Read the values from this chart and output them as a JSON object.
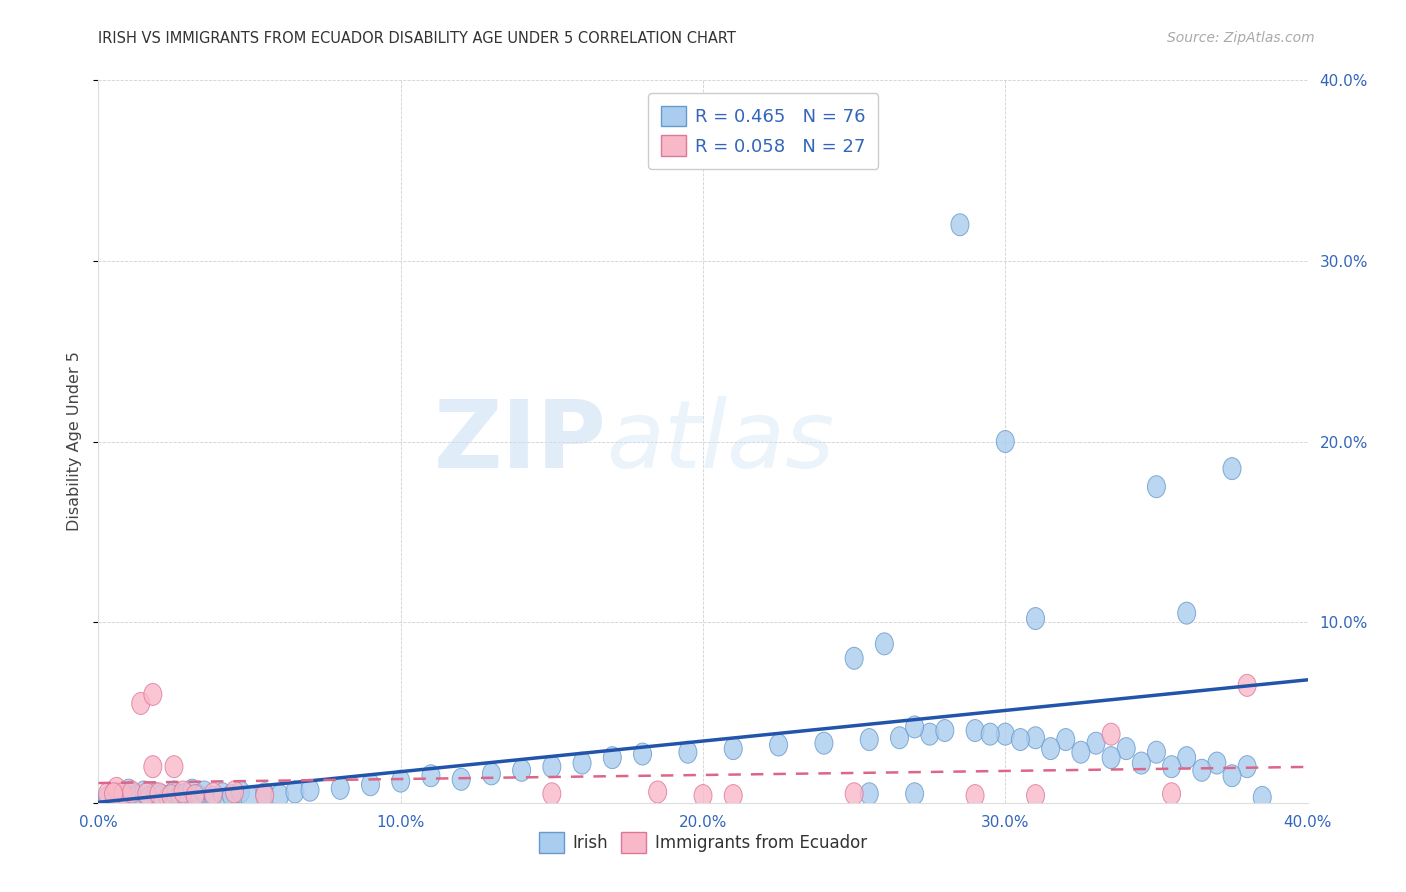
{
  "title": "IRISH VS IMMIGRANTS FROM ECUADOR DISABILITY AGE UNDER 5 CORRELATION CHART",
  "source": "Source: ZipAtlas.com",
  "ylabel": "Disability Age Under 5",
  "xlim": [
    0.0,
    0.4
  ],
  "ylim": [
    0.0,
    0.4
  ],
  "xticks": [
    0.0,
    0.1,
    0.2,
    0.3,
    0.4
  ],
  "yticks": [
    0.0,
    0.1,
    0.2,
    0.3,
    0.4
  ],
  "xticklabels": [
    "0.0%",
    "10.0%",
    "20.0%",
    "30.0%",
    "40.0%"
  ],
  "yticklabels": [
    "",
    "10.0%",
    "20.0%",
    "30.0%",
    "40.0%"
  ],
  "irish_fill": "#aaccee",
  "irish_edge": "#6699cc",
  "ecuador_fill": "#f9b8c8",
  "ecuador_edge": "#dd7799",
  "irish_line": "#2255aa",
  "ecuador_line": "#dd6688",
  "irish_R": 0.465,
  "irish_N": 76,
  "ecuador_R": 0.058,
  "ecuador_N": 27,
  "label_irish": "Irish",
  "label_ecuador": "Immigrants from Ecuador",
  "watermark_zip": "ZIP",
  "watermark_atlas": "atlas",
  "irish_x": [
    0.003,
    0.006,
    0.008,
    0.01,
    0.011,
    0.013,
    0.015,
    0.017,
    0.019,
    0.021,
    0.023,
    0.025,
    0.027,
    0.029,
    0.031,
    0.033,
    0.035,
    0.038,
    0.041,
    0.044,
    0.047,
    0.05,
    0.055,
    0.06,
    0.065,
    0.07,
    0.08,
    0.09,
    0.1,
    0.11,
    0.12,
    0.13,
    0.14,
    0.15,
    0.16,
    0.17,
    0.18,
    0.195,
    0.21,
    0.225,
    0.24,
    0.255,
    0.265,
    0.275,
    0.29,
    0.3,
    0.31,
    0.32,
    0.33,
    0.34,
    0.35,
    0.36,
    0.37,
    0.38,
    0.27,
    0.28,
    0.295,
    0.305,
    0.315,
    0.325,
    0.335,
    0.345,
    0.355,
    0.365,
    0.375,
    0.385,
    0.25,
    0.26,
    0.31,
    0.35,
    0.36,
    0.375,
    0.3,
    0.285,
    0.27,
    0.255
  ],
  "irish_y": [
    0.003,
    0.005,
    0.004,
    0.007,
    0.005,
    0.004,
    0.006,
    0.003,
    0.005,
    0.004,
    0.003,
    0.006,
    0.004,
    0.005,
    0.007,
    0.004,
    0.006,
    0.003,
    0.005,
    0.004,
    0.006,
    0.003,
    0.005,
    0.004,
    0.006,
    0.007,
    0.008,
    0.01,
    0.012,
    0.015,
    0.013,
    0.016,
    0.018,
    0.02,
    0.022,
    0.025,
    0.027,
    0.028,
    0.03,
    0.032,
    0.033,
    0.035,
    0.036,
    0.038,
    0.04,
    0.038,
    0.036,
    0.035,
    0.033,
    0.03,
    0.028,
    0.025,
    0.022,
    0.02,
    0.042,
    0.04,
    0.038,
    0.035,
    0.03,
    0.028,
    0.025,
    0.022,
    0.02,
    0.018,
    0.015,
    0.003,
    0.08,
    0.088,
    0.102,
    0.175,
    0.105,
    0.185,
    0.2,
    0.32,
    0.005,
    0.005
  ],
  "ecuador_x": [
    0.003,
    0.006,
    0.008,
    0.011,
    0.014,
    0.016,
    0.018,
    0.02,
    0.024,
    0.028,
    0.032,
    0.038,
    0.045,
    0.055,
    0.018,
    0.15,
    0.185,
    0.21,
    0.25,
    0.29,
    0.31,
    0.335,
    0.355,
    0.38,
    0.005,
    0.025,
    0.2
  ],
  "ecuador_y": [
    0.005,
    0.008,
    0.005,
    0.006,
    0.055,
    0.005,
    0.02,
    0.005,
    0.004,
    0.006,
    0.004,
    0.005,
    0.006,
    0.004,
    0.06,
    0.005,
    0.006,
    0.004,
    0.005,
    0.004,
    0.004,
    0.038,
    0.005,
    0.065,
    0.005,
    0.02,
    0.004
  ]
}
